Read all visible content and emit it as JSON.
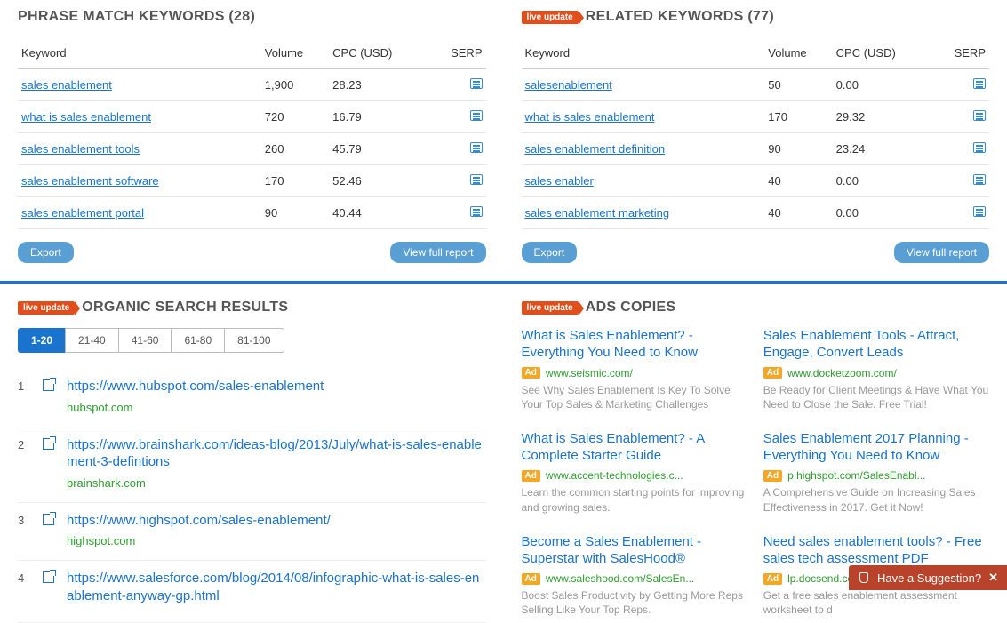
{
  "phraseMatch": {
    "title": "PHRASE MATCH KEYWORDS (28)",
    "cols": {
      "keyword": "Keyword",
      "volume": "Volume",
      "cpc": "CPC (USD)",
      "serp": "SERP"
    },
    "rows": [
      {
        "keyword": "sales enablement",
        "volume": "1,900",
        "cpc": "28.23"
      },
      {
        "keyword": "what is sales enablement",
        "volume": "720",
        "cpc": "16.79"
      },
      {
        "keyword": "sales enablement tools",
        "volume": "260",
        "cpc": "45.79"
      },
      {
        "keyword": "sales enablement software",
        "volume": "170",
        "cpc": "52.46"
      },
      {
        "keyword": "sales enablement portal",
        "volume": "90",
        "cpc": "40.44"
      }
    ],
    "exportLabel": "Export",
    "fullReportLabel": "View full report"
  },
  "related": {
    "liveLabel": "live update",
    "title": "RELATED KEYWORDS (77)",
    "cols": {
      "keyword": "Keyword",
      "volume": "Volume",
      "cpc": "CPC (USD)",
      "serp": "SERP"
    },
    "rows": [
      {
        "keyword": "salesenablement",
        "volume": "50",
        "cpc": "0.00"
      },
      {
        "keyword": "what is sales enablement",
        "volume": "170",
        "cpc": "29.32"
      },
      {
        "keyword": "sales enablement definition",
        "volume": "90",
        "cpc": "23.24"
      },
      {
        "keyword": "sales enabler",
        "volume": "40",
        "cpc": "0.00"
      },
      {
        "keyword": "sales enablement marketing",
        "volume": "40",
        "cpc": "0.00"
      }
    ],
    "exportLabel": "Export",
    "fullReportLabel": "View full report"
  },
  "organic": {
    "liveLabel": "live update",
    "title": "ORGANIC SEARCH RESULTS",
    "pages": [
      "1-20",
      "21-40",
      "41-60",
      "61-80",
      "81-100"
    ],
    "activePage": 0,
    "results": [
      {
        "n": "1",
        "url": "https://www.hubspot.com/sales-enablement",
        "domain": "hubspot.com"
      },
      {
        "n": "2",
        "url": "https://www.brainshark.com/ideas-blog/2013/July/what-is-sales-enablement-3-defintions",
        "domain": "brainshark.com"
      },
      {
        "n": "3",
        "url": "https://www.highspot.com/sales-enablement/",
        "domain": "highspot.com"
      },
      {
        "n": "4",
        "url": "https://www.salesforce.com/blog/2014/08/infographic-what-is-sales-enablement-anyway-gp.html",
        "domain": ""
      }
    ]
  },
  "ads": {
    "liveLabel": "live update",
    "title": "ADS COPIES",
    "adLabel": "Ad",
    "items": [
      {
        "title": "What is Sales Enablement? - Everything You Need to Know",
        "url": "www.seismic.com/",
        "desc": "See Why Sales Enablement Is Key To Solve Your Top Sales & Marketing Challenges"
      },
      {
        "title": "Sales Enablement Tools - Attract, Engage, Convert Leads",
        "url": "www.docketzoom.com/",
        "desc": "Be Ready for Client Meetings & Have What You Need to Close the Sale. Free Trial!"
      },
      {
        "title": "What is Sales Enablement? - A Complete Starter Guide",
        "url": "www.accent-technologies.c...",
        "desc": "Learn the common starting points for improving and growing sales."
      },
      {
        "title": "Sales Enablement 2017 Planning - Everything You Need to Know",
        "url": "p.highspot.com/SalesEnabl...",
        "desc": "A Comprehensive Guide on Increasing Sales Effectiveness in 2017. Get it Now!"
      },
      {
        "title": "Become a Sales Enablement - Superstar with SalesHood®",
        "url": "www.saleshood.com/SalesEn...",
        "desc": "Boost Sales Productivity by Getting More Reps Selling Like Your Top Reps."
      },
      {
        "title": "Need sales enablement tools? - Free sales tech assessment PDF",
        "url": "lp.docsend.com/assessment",
        "desc": "Get a free sales enablement assessment worksheet to d"
      }
    ]
  },
  "suggestion": {
    "label": "Have a Suggestion?",
    "close": "✕"
  }
}
